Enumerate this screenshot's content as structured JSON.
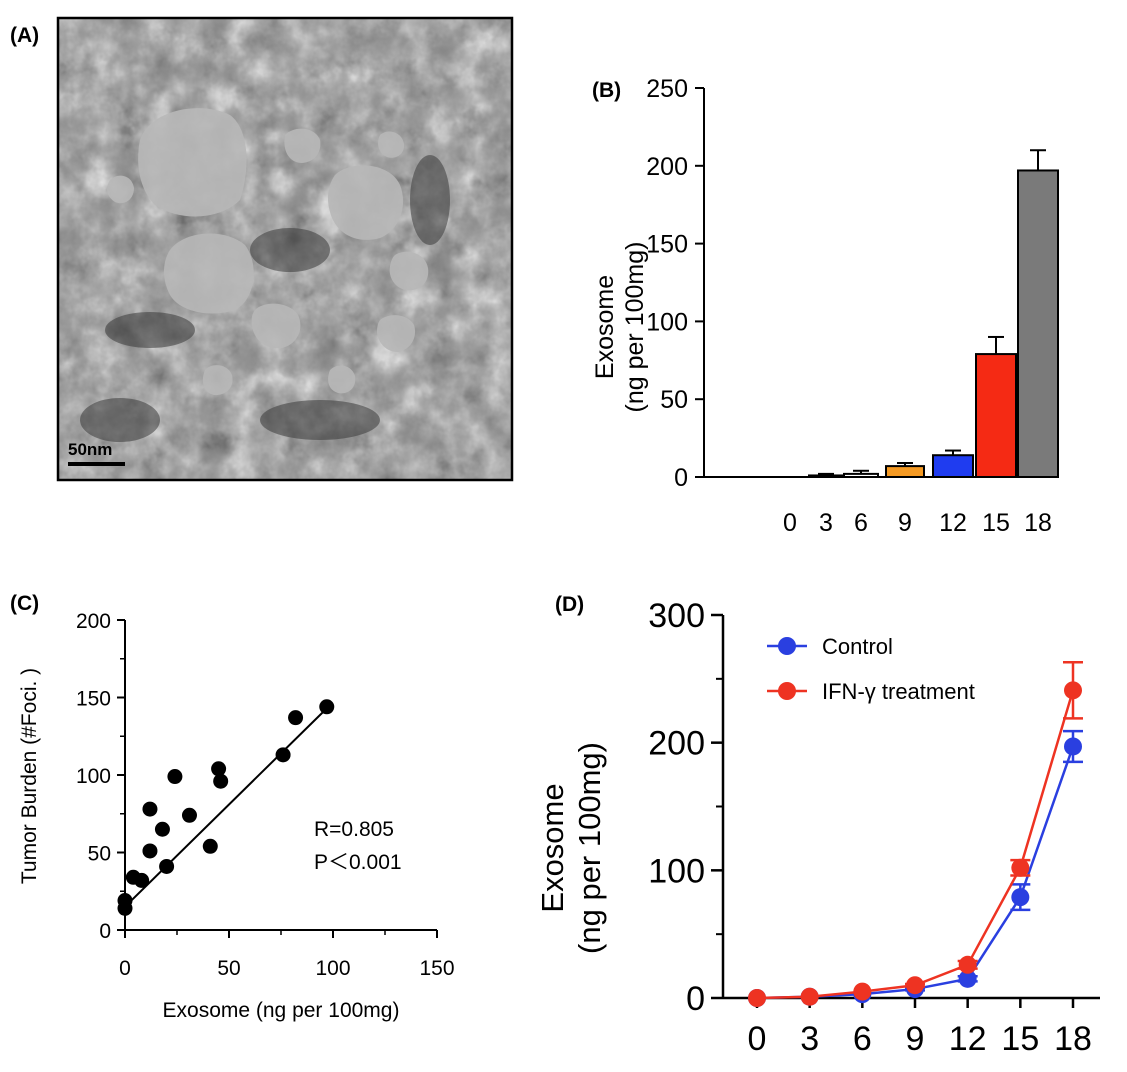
{
  "colors": {
    "orange": "#f59a23",
    "blue": "#1f3cf0",
    "red": "#f52a14",
    "gray": "#7a7a7a",
    "control_line": "#2a3fe0",
    "ifn_line": "#ee3322"
  },
  "panel_a": {
    "label": "(A)",
    "scale_bar": "50nm"
  },
  "chart_data": [
    {
      "panel": "(B)",
      "type": "bar",
      "categories": [
        "0",
        "3",
        "6",
        "9",
        "12",
        "15",
        "18"
      ],
      "values": [
        0,
        1,
        2,
        7,
        14,
        79,
        197
      ],
      "errors": [
        0,
        1,
        2,
        2,
        3,
        11,
        13
      ],
      "bar_colors": [
        "#ffffff",
        "#ffffff",
        "#ffffff",
        "#f59a23",
        "#1f3cf0",
        "#f52a14",
        "#7a7a7a"
      ],
      "ylabel_line1": "Exosome",
      "ylabel_line2": "(ng per 100mg)",
      "xlabel": "",
      "ylim": [
        0,
        250
      ],
      "yticks": [
        "0",
        "50",
        "100",
        "150",
        "200",
        "250"
      ]
    },
    {
      "panel": "(C)",
      "type": "scatter",
      "points": [
        {
          "x": 0,
          "y": 14
        },
        {
          "x": 0,
          "y": 19
        },
        {
          "x": 4,
          "y": 34
        },
        {
          "x": 8,
          "y": 32
        },
        {
          "x": 12,
          "y": 51
        },
        {
          "x": 12,
          "y": 78
        },
        {
          "x": 18,
          "y": 65
        },
        {
          "x": 20,
          "y": 41
        },
        {
          "x": 24,
          "y": 99
        },
        {
          "x": 31,
          "y": 74
        },
        {
          "x": 41,
          "y": 54
        },
        {
          "x": 45,
          "y": 104
        },
        {
          "x": 46,
          "y": 96
        },
        {
          "x": 76,
          "y": 113
        },
        {
          "x": 82,
          "y": 137
        },
        {
          "x": 97,
          "y": 144
        }
      ],
      "fit_line": [
        {
          "x": 0,
          "y": 15
        },
        {
          "x": 97,
          "y": 143
        }
      ],
      "annotation_r": "R=0.805",
      "annotation_p": "P＜0.001",
      "xlabel": "Exosome  (ng per 100mg)",
      "ylabel": "Tumor Burden (#Foci. )",
      "xlim": [
        0,
        150
      ],
      "ylim": [
        0,
        200
      ],
      "xticks": [
        "0",
        "50",
        "100",
        "150"
      ],
      "yticks": [
        "0",
        "50",
        "100",
        "150",
        "200"
      ]
    },
    {
      "panel": "(D)",
      "type": "line",
      "x": [
        0,
        3,
        6,
        9,
        12,
        15,
        18
      ],
      "series": [
        {
          "name": "Control",
          "values": [
            0,
            1,
            3,
            7,
            15,
            79,
            197
          ],
          "errors": [
            0,
            0,
            0,
            1,
            2,
            10,
            12
          ]
        },
        {
          "name": "IFN-γ treatment",
          "values": [
            0,
            1,
            5,
            10,
            26,
            102,
            241
          ],
          "errors": [
            0,
            0,
            0,
            1,
            3,
            6,
            22
          ]
        }
      ],
      "ylabel_line1": "Exosome",
      "ylabel_line2": "(ng per 100mg)",
      "xlabel": "",
      "ylim": [
        0,
        300
      ],
      "yticks": [
        "0",
        "100",
        "200",
        "300"
      ],
      "xticks": [
        "0",
        "3",
        "6",
        "9",
        "12",
        "15",
        "18"
      ],
      "legend_position": "top-left"
    }
  ]
}
